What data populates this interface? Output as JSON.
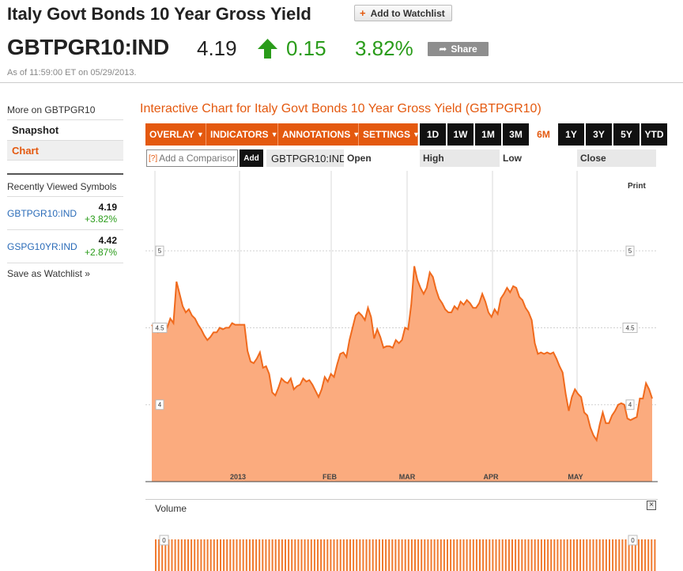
{
  "header": {
    "title": "Italy Govt Bonds 10 Year Gross Yield",
    "watchlist_label": "Add to Watchlist",
    "ticker": "GBTPGR10:IND",
    "price": "4.19",
    "change": "0.15",
    "change_pct": "3.82%",
    "share_label": "Share",
    "as_of": "As of 11:59:00 ET on 05/29/2013.",
    "accent": "#e4590f",
    "up_color": "#2a9c1a"
  },
  "sidebar": {
    "more_on": "More on GBTPGR10",
    "nav": [
      {
        "label": "Snapshot"
      },
      {
        "label": "Chart"
      }
    ],
    "recent_header": "Recently Viewed Symbols",
    "recent": [
      {
        "symbol": "GBTPGR10:IND",
        "price": "4.19",
        "change": "+3.82%"
      },
      {
        "symbol": "GSPG10YR:IND",
        "price": "4.42",
        "change": "+2.87%"
      }
    ],
    "save_watchlist": "Save as Watchlist »"
  },
  "chart_panel": {
    "title": "Interactive Chart for Italy Govt Bonds 10 Year Gross Yield (GBTPGR10)",
    "menus": [
      {
        "label": "OVERLAY"
      },
      {
        "label": "INDICATORS"
      },
      {
        "label": "ANNOTATIONS"
      },
      {
        "label": "SETTINGS"
      }
    ],
    "ranges": [
      "1D",
      "1W",
      "1M",
      "3M",
      "6M",
      "1Y",
      "3Y",
      "5Y",
      "YTD"
    ],
    "active_range": "6M",
    "compare_placeholder": "Add a Comparison",
    "compare_help": "[?]",
    "add_label": "Add",
    "symbol": "GBTPGR10:IND",
    "ohlc": [
      "Open",
      "High",
      "Low",
      "Close"
    ],
    "print_label": "Print",
    "volume_label": "Volume",
    "close_icon": "×"
  },
  "chart_data": {
    "type": "area",
    "x_ticks": [
      "2013",
      "FEB",
      "MAR",
      "APR",
      "MAY"
    ],
    "y_ticks": [
      4,
      4.5,
      5
    ],
    "ylim": [
      3.5,
      5.52
    ],
    "values": [
      4.52,
      4.49,
      4.47,
      4.48,
      4.51,
      4.5,
      4.56,
      4.53,
      4.8,
      4.72,
      4.64,
      4.6,
      4.62,
      4.58,
      4.56,
      4.52,
      4.49,
      4.45,
      4.42,
      4.44,
      4.47,
      4.47,
      4.5,
      4.49,
      4.5,
      4.5,
      4.53,
      4.52,
      4.52,
      4.52,
      4.52,
      4.35,
      4.28,
      4.27,
      4.3,
      4.34,
      4.24,
      4.25,
      4.2,
      4.08,
      4.06,
      4.11,
      4.17,
      4.15,
      4.14,
      4.17,
      4.1,
      4.12,
      4.13,
      4.17,
      4.15,
      4.16,
      4.13,
      4.09,
      4.05,
      4.1,
      4.18,
      4.15,
      4.2,
      4.18,
      4.26,
      4.33,
      4.34,
      4.31,
      4.42,
      4.5,
      4.58,
      4.6,
      4.58,
      4.55,
      4.63,
      4.57,
      4.43,
      4.49,
      4.44,
      4.37,
      4.38,
      4.38,
      4.37,
      4.42,
      4.4,
      4.42,
      4.5,
      4.49,
      4.65,
      4.9,
      4.81,
      4.76,
      4.72,
      4.76,
      4.86,
      4.83,
      4.75,
      4.69,
      4.66,
      4.62,
      4.6,
      4.6,
      4.64,
      4.62,
      4.67,
      4.65,
      4.68,
      4.66,
      4.63,
      4.63,
      4.66,
      4.72,
      4.67,
      4.6,
      4.57,
      4.62,
      4.59,
      4.69,
      4.72,
      4.76,
      4.73,
      4.77,
      4.76,
      4.7,
      4.68,
      4.63,
      4.6,
      4.55,
      4.4,
      4.33,
      4.34,
      4.33,
      4.34,
      4.33,
      4.34,
      4.3,
      4.25,
      4.21,
      4.07,
      3.96,
      4.05,
      4.1,
      4.07,
      4.05,
      3.95,
      3.93,
      3.85,
      3.8,
      3.77,
      3.87,
      3.95,
      3.88,
      3.88,
      3.93,
      3.96,
      4.0,
      4.01,
      4.0,
      3.91,
      3.9,
      3.91,
      3.92,
      4.04,
      4.04,
      4.14,
      4.1,
      4.04
    ]
  }
}
